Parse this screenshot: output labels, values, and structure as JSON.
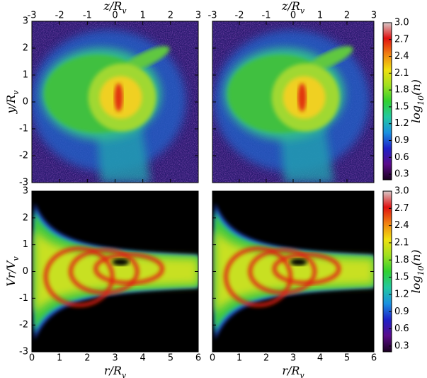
{
  "chart_data": [
    {
      "type": "heatmap",
      "xaxis": "top",
      "xlabel": [
        {
          "text": "z/R"
        },
        {
          "text": "v",
          "sub": true
        }
      ],
      "ylabel": [
        {
          "text": "y/R"
        },
        {
          "text": "v",
          "sub": true
        }
      ],
      "xlim": [
        -3,
        3
      ],
      "ylim": [
        -3,
        3
      ],
      "xticks": [
        -3,
        -2,
        -1,
        0,
        1,
        2,
        3
      ],
      "yticks": [
        -3,
        -2,
        -1,
        0,
        1,
        2,
        3
      ]
    },
    {
      "type": "heatmap",
      "xaxis": "top",
      "ytick_labels": false,
      "xlabel": [
        {
          "text": "z/R"
        },
        {
          "text": "v",
          "sub": true
        }
      ],
      "xlim": [
        -3,
        3
      ],
      "ylim": [
        -3,
        3
      ],
      "xticks": [
        -3,
        -2,
        -1,
        0,
        1,
        2,
        3
      ],
      "yticks": [
        -3,
        -2,
        -1,
        0,
        1,
        2,
        3
      ],
      "colorbar": {
        "label": [
          {
            "text": "log"
          },
          {
            "text": "10",
            "sub": true
          },
          {
            "text": "(n)"
          }
        ],
        "lim": [
          0.2,
          3.0
        ],
        "ticks": [
          0.3,
          0.6,
          0.9,
          1.2,
          1.5,
          1.8,
          2.1,
          2.4,
          2.7,
          {
            "value": 3,
            "label": "3.0"
          }
        ],
        "colormap": [
          "#1a0020",
          "#5a0a8a",
          "#1e20c8",
          "#1a90e0",
          "#22c8a0",
          "#30d030",
          "#a0e020",
          "#f0e010",
          "#f08010",
          "#e01010",
          "#d8c8c8"
        ]
      }
    },
    {
      "type": "heatmap",
      "xaxis": "bottom",
      "xlabel": [
        {
          "text": "r/R"
        },
        {
          "text": "v",
          "sub": true
        }
      ],
      "ylabel": [
        {
          "text": "Vr/V"
        },
        {
          "text": "v",
          "sub": true
        }
      ],
      "xlim": [
        0,
        6
      ],
      "ylim": [
        -3,
        3
      ],
      "xticks": [
        0,
        1,
        2,
        3,
        4,
        5,
        6
      ],
      "yticks": [
        -3,
        -2,
        -1,
        0,
        1,
        2,
        3
      ]
    },
    {
      "type": "heatmap",
      "xaxis": "bottom",
      "ytick_labels": false,
      "xlabel": [
        {
          "text": "r/R"
        },
        {
          "text": "v",
          "sub": true
        }
      ],
      "xlim": [
        0,
        6
      ],
      "ylim": [
        -3,
        3
      ],
      "xticks": [
        0,
        1,
        2,
        3,
        4,
        5,
        6
      ],
      "yticks": [
        -3,
        -2,
        -1,
        0,
        1,
        2,
        3
      ],
      "colorbar": {
        "label": [
          {
            "text": "log"
          },
          {
            "text": "10",
            "sub": true
          },
          {
            "text": "(n)"
          }
        ],
        "lim": [
          0.2,
          3.0
        ],
        "ticks": [
          0.3,
          0.6,
          0.9,
          1.2,
          1.5,
          1.8,
          2.1,
          2.4,
          2.7,
          {
            "value": 3,
            "label": "3.0"
          }
        ],
        "colormap": [
          "#1a0020",
          "#5a0a8a",
          "#1e20c8",
          "#1a90e0",
          "#22c8a0",
          "#30d030",
          "#a0e020",
          "#f0e010",
          "#f08010",
          "#e01010",
          "#d8c8c8"
        ]
      }
    }
  ]
}
